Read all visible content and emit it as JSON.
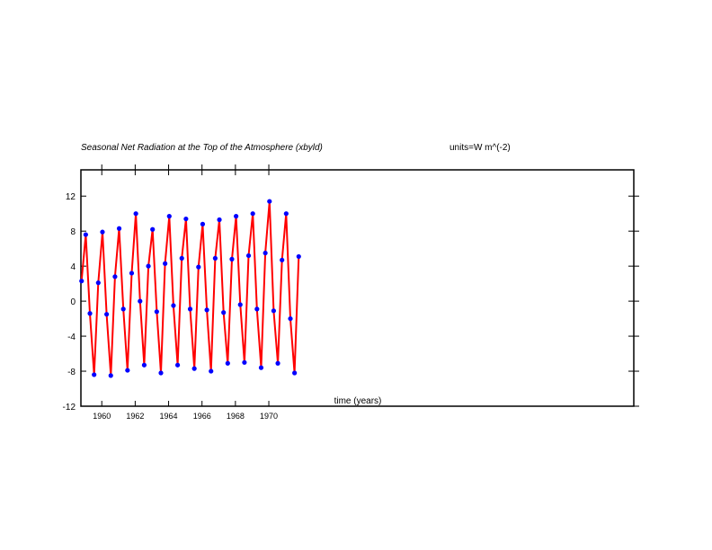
{
  "chart_data": {
    "type": "line",
    "title": "Seasonal Net Radiation at the Top of the Atmosphere (xbyld)",
    "units": "units=W m^(-2)",
    "xlabel": "time (years)",
    "ylabel": "",
    "xlim": [
      1958.75,
      1991.85
    ],
    "ylim": [
      -12,
      15
    ],
    "yticks": [
      -12,
      -8,
      -4,
      0,
      4,
      8,
      12
    ],
    "xticks": [
      1960,
      1962,
      1964,
      1966,
      1968,
      1970
    ],
    "xtick_labels": [
      "1960",
      "1962",
      "1964",
      "1966",
      "1968",
      "1970"
    ],
    "grid": false,
    "series": [
      {
        "line_color": "#ff0000",
        "marker_color": "#0000ff",
        "x": [
          1958.79,
          1959.04,
          1959.29,
          1959.54,
          1959.79,
          1960.04,
          1960.29,
          1960.54,
          1960.79,
          1961.04,
          1961.29,
          1961.54,
          1961.79,
          1962.04,
          1962.29,
          1962.54,
          1962.79,
          1963.04,
          1963.29,
          1963.54,
          1963.79,
          1964.04,
          1964.29,
          1964.54,
          1964.79,
          1965.04,
          1965.29,
          1965.54,
          1965.79,
          1966.04,
          1966.29,
          1966.54,
          1966.79,
          1967.04,
          1967.29,
          1967.54,
          1967.79,
          1968.04,
          1968.29,
          1968.54,
          1968.79,
          1969.04,
          1969.29,
          1969.54,
          1969.79,
          1970.04,
          1970.29,
          1970.54,
          1970.79,
          1971.04,
          1971.29,
          1971.54,
          1971.79
        ],
        "y": [
          2.3,
          7.6,
          -1.4,
          -8.4,
          2.1,
          7.9,
          -1.5,
          -8.5,
          2.8,
          8.3,
          -0.9,
          -7.9,
          3.2,
          10.0,
          0.0,
          -7.3,
          4.0,
          8.2,
          -1.2,
          -8.2,
          4.3,
          9.7,
          -0.5,
          -7.3,
          4.9,
          9.4,
          -0.9,
          -7.7,
          3.9,
          8.8,
          -1.0,
          -8.0,
          4.9,
          9.3,
          -1.3,
          -7.1,
          4.8,
          9.7,
          -0.4,
          -7.0,
          5.2,
          10.0,
          -0.9,
          -7.6,
          5.5,
          11.4,
          -1.1,
          -7.1,
          4.7,
          10.0,
          -2.0,
          -8.2,
          5.1
        ]
      }
    ]
  }
}
